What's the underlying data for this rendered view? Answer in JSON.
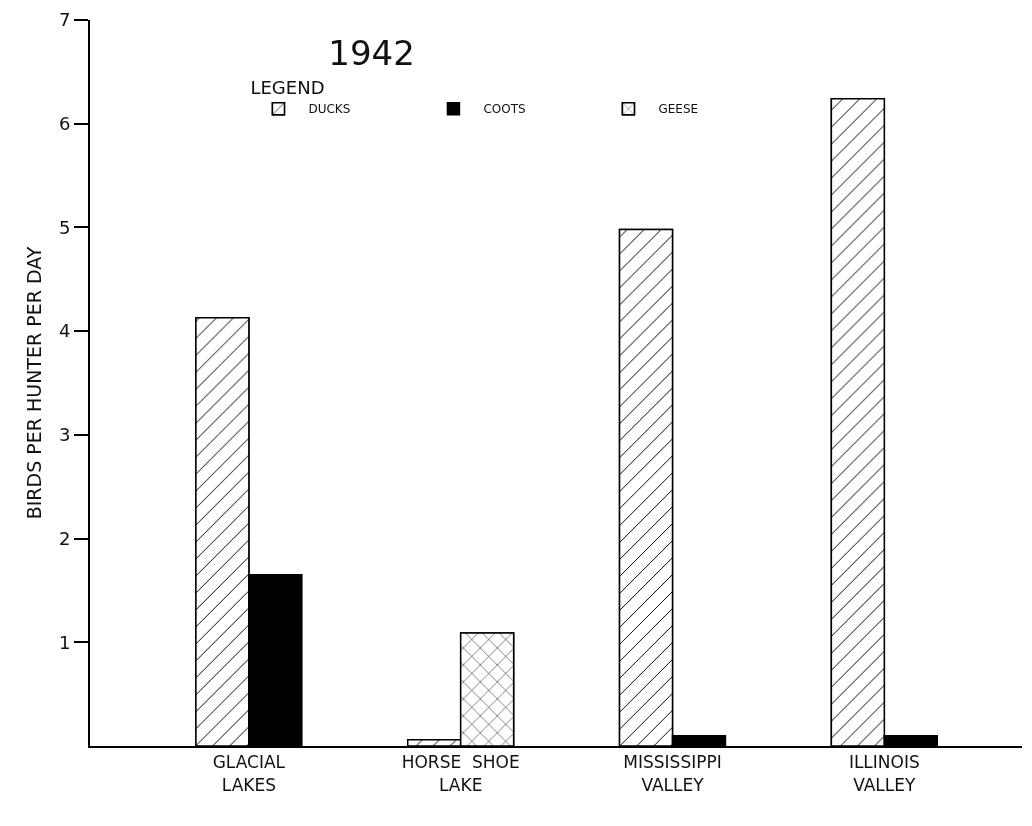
{
  "chart_data": {
    "type": "bar",
    "title": "1942",
    "ylabel": "BIRDS PER HUNTER PER DAY",
    "legend_title": "LEGEND",
    "categories": [
      "GLACIAL\nLAKES",
      "HORSE  SHOE\nLAKE",
      "MISSISSIPPI\nVALLEY",
      "ILLINOIS\nVALLEY"
    ],
    "series": [
      {
        "name": "DUCKS",
        "color": "#ffffff",
        "values": [
          4.13,
          0.06,
          4.98,
          6.24
        ]
      },
      {
        "name": "COOTS",
        "color": "#000000",
        "values": [
          1.65,
          null,
          0.1,
          0.1
        ]
      },
      {
        "name": "GEESE",
        "color": "#ffffff",
        "values": [
          null,
          1.09,
          null,
          null
        ]
      }
    ],
    "ylim": [
      0,
      7
    ],
    "yticks": [
      1,
      2,
      3,
      4,
      5,
      6,
      7
    ],
    "grid": false,
    "legend": "top left"
  }
}
